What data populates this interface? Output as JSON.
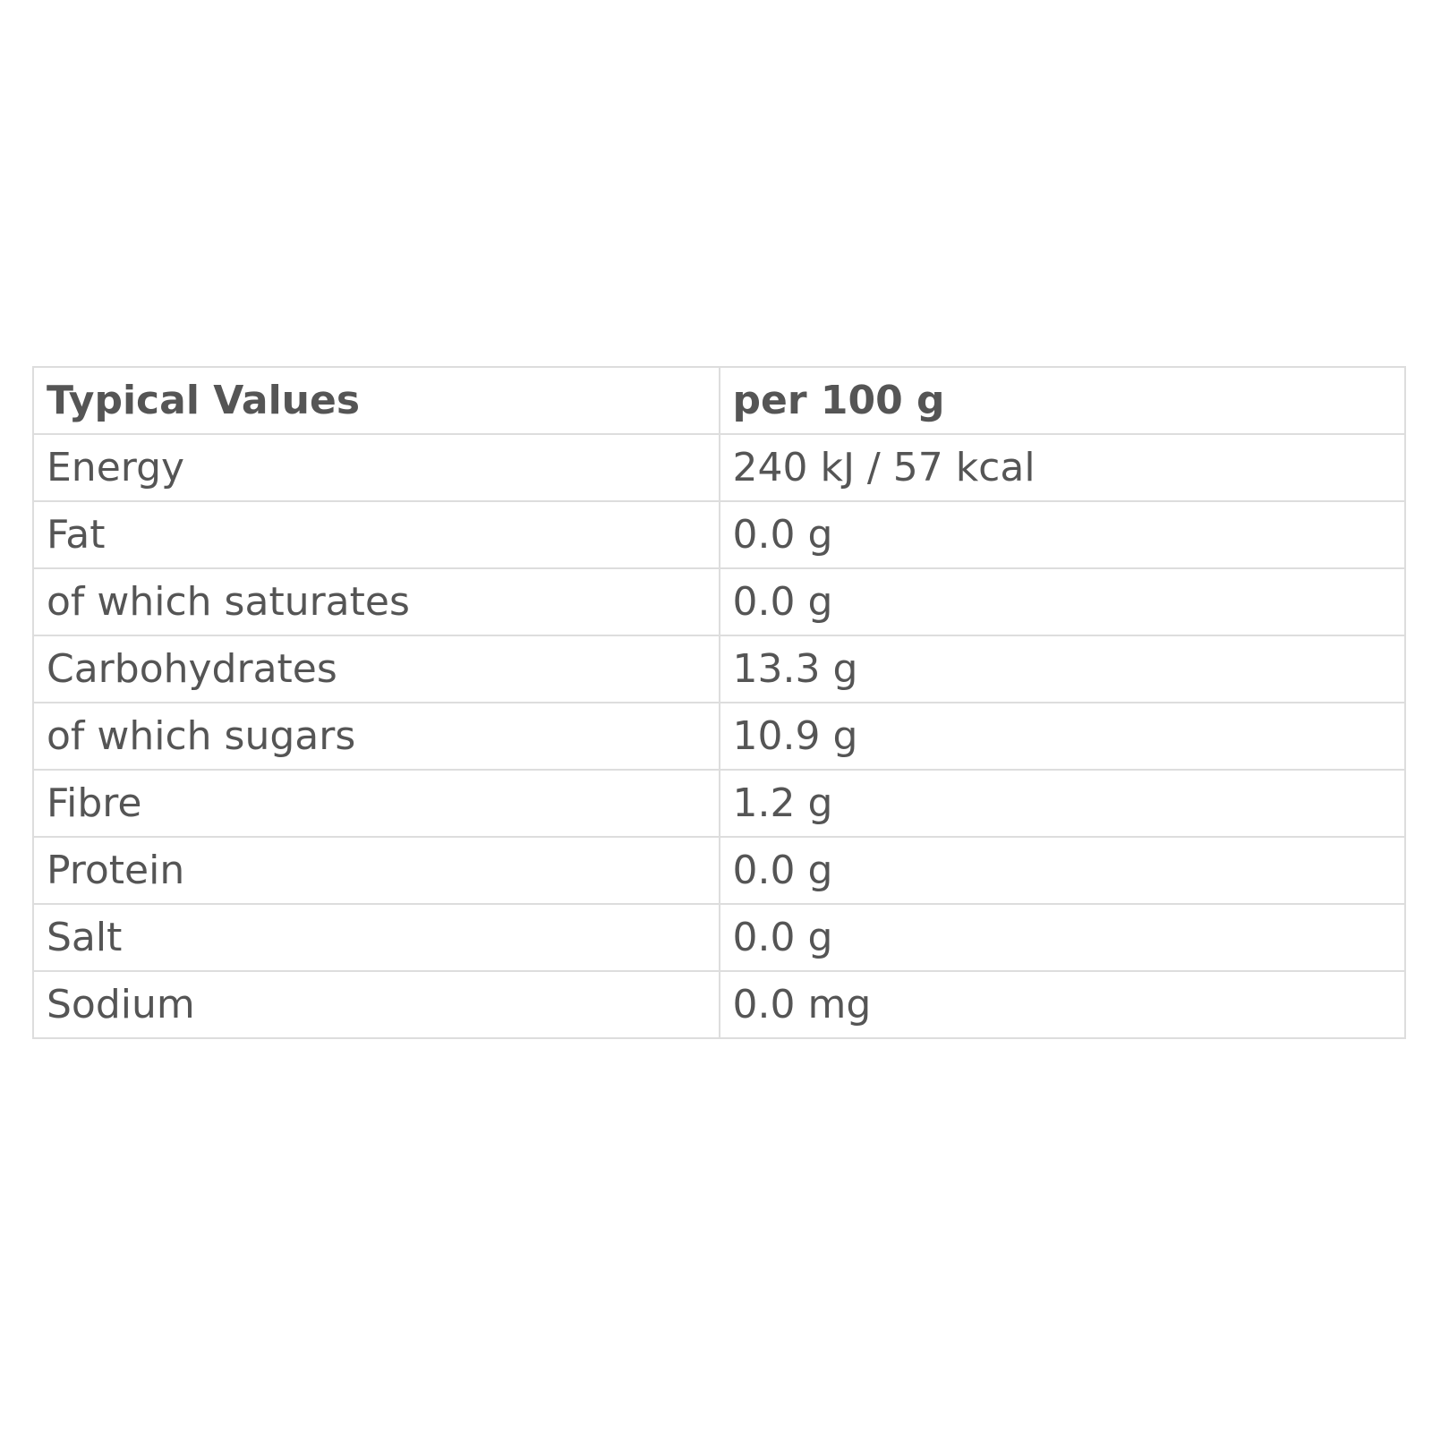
{
  "table": {
    "header": [
      "Typical Values",
      "per 100 g"
    ],
    "rows": [
      [
        "Energy",
        "240 kJ / 57 kcal"
      ],
      [
        "Fat",
        "0.0 g"
      ],
      [
        "of which saturates",
        "0.0 g"
      ],
      [
        "Carbohydrates",
        "13.3 g"
      ],
      [
        "of which sugars",
        "10.9 g"
      ],
      [
        "Fibre",
        "1.2 g"
      ],
      [
        "Protein",
        "0.0 g"
      ],
      [
        "Salt",
        "0.0 g"
      ],
      [
        "Sodium",
        "0.0 mg"
      ]
    ]
  }
}
